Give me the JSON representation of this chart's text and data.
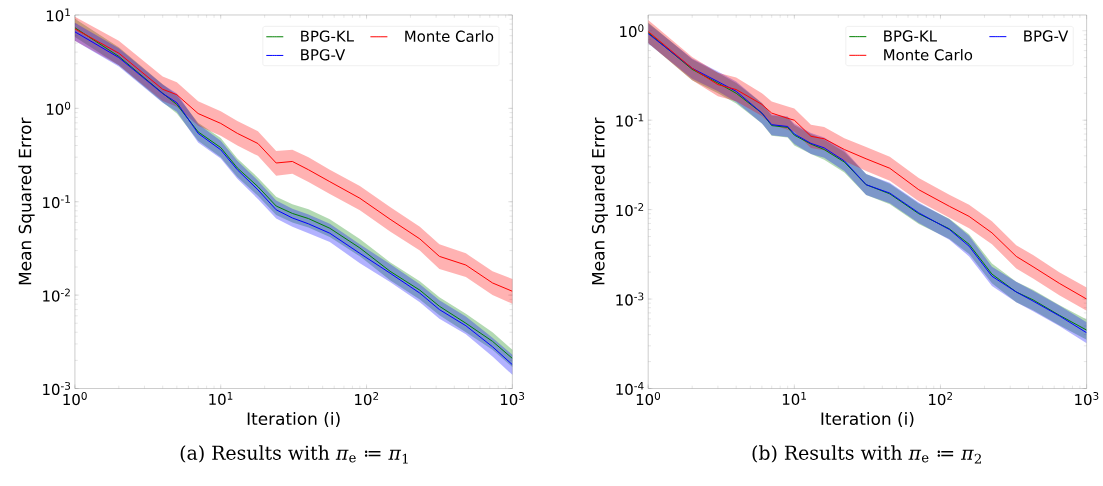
{
  "chart_data": [
    {
      "type": "line",
      "xlabel": "Iteration (i)",
      "ylabel": "Mean Squared Error",
      "log": "xy",
      "legend": "top right",
      "annotations": [
        "(a) Results with *π*$_{e}$ ≔ *π*$_{1}$"
      ],
      "xlim": [
        1,
        1000
      ],
      "ylim": [
        0.001,
        10
      ],
      "xticks": [
        {
          "value": 1,
          "label": "10$^{0}$"
        },
        {
          "value": 10,
          "label": "10$^{1}$"
        },
        {
          "value": 100,
          "label": "10$^{2}$"
        },
        {
          "value": 1000,
          "label": "10$^{3}$"
        }
      ],
      "yticks": [
        {
          "value": 0.001,
          "label": "10$^{-3}$"
        },
        {
          "value": 0.01,
          "label": "10$^{-2}$"
        },
        {
          "value": 0.1,
          "label": "10$^{-1}$"
        },
        {
          "value": 1,
          "label": "10$^{0}$"
        },
        {
          "value": 10,
          "label": "10$^{1}$"
        }
      ],
      "x": [
        1,
        2,
        4,
        5,
        7,
        10,
        13,
        18,
        24,
        31,
        40,
        56,
        90,
        145,
        232,
        316,
        480,
        731,
        1000
      ],
      "series": [
        {
          "name": "BPG-KL",
          "color": "#008000",
          "values": [
            7.3,
            3.6,
            1.45,
            1.1,
            0.56,
            0.38,
            0.23,
            0.145,
            0.09,
            0.075,
            0.066,
            0.052,
            0.032,
            0.018,
            0.0113,
            0.0076,
            0.005,
            0.0032,
            0.0021
          ],
          "upper": [
            9.1,
            4.5,
            1.81,
            1.38,
            0.7,
            0.48,
            0.29,
            0.181,
            0.113,
            0.094,
            0.083,
            0.065,
            0.04,
            0.0225,
            0.0141,
            0.0095,
            0.0063,
            0.004,
            0.0026
          ],
          "lower": [
            5.8,
            2.9,
            1.16,
            0.88,
            0.45,
            0.3,
            0.184,
            0.116,
            0.072,
            0.06,
            0.053,
            0.042,
            0.026,
            0.0144,
            0.009,
            0.0061,
            0.004,
            0.0026,
            0.0017
          ]
        },
        {
          "name": "Monte Carlo",
          "color": "#ff0000",
          "values": [
            7.1,
            3.9,
            1.6,
            1.4,
            0.88,
            0.69,
            0.54,
            0.42,
            0.26,
            0.27,
            0.22,
            0.164,
            0.109,
            0.065,
            0.04,
            0.026,
            0.021,
            0.0135,
            0.011
          ],
          "upper": [
            9.6,
            5.3,
            2.2,
            1.9,
            1.19,
            0.93,
            0.73,
            0.57,
            0.35,
            0.36,
            0.3,
            0.22,
            0.147,
            0.088,
            0.054,
            0.035,
            0.028,
            0.018,
            0.0149
          ],
          "lower": [
            5.3,
            2.9,
            1.2,
            1.04,
            0.65,
            0.51,
            0.4,
            0.31,
            0.19,
            0.2,
            0.163,
            0.121,
            0.081,
            0.048,
            0.03,
            0.019,
            0.0156,
            0.01,
            0.0081
          ]
        },
        {
          "name": "BPG-V",
          "color": "#0000ff",
          "values": [
            6.6,
            3.5,
            1.44,
            1.15,
            0.54,
            0.36,
            0.22,
            0.134,
            0.082,
            0.067,
            0.058,
            0.046,
            0.028,
            0.0172,
            0.0105,
            0.007,
            0.0047,
            0.0028,
            0.0018
          ],
          "upper": [
            8.25,
            4.4,
            1.8,
            1.44,
            0.68,
            0.45,
            0.275,
            0.168,
            0.103,
            0.084,
            0.073,
            0.058,
            0.035,
            0.0215,
            0.0131,
            0.0088,
            0.0059,
            0.0035,
            0.0023
          ],
          "lower": [
            5.28,
            2.8,
            1.15,
            0.92,
            0.43,
            0.29,
            0.176,
            0.107,
            0.066,
            0.054,
            0.046,
            0.037,
            0.022,
            0.0138,
            0.0084,
            0.0056,
            0.0038,
            0.0022,
            0.0014
          ]
        }
      ]
    },
    {
      "type": "line",
      "xlabel": "Iteration (i)",
      "ylabel": "Mean Squared Error",
      "log": "xy",
      "legend": "top right",
      "annotations": [
        "(b) Results with *π*$_{e}$ ≔ *π*$_{2}$"
      ],
      "xlim": [
        1,
        1000
      ],
      "ylim": [
        0.0001,
        1.5
      ],
      "xticks": [
        {
          "value": 1,
          "label": "10$^{0}$"
        },
        {
          "value": 10,
          "label": "10$^{1}$"
        },
        {
          "value": 100,
          "label": "10$^{2}$"
        },
        {
          "value": 1000,
          "label": "10$^{3}$"
        }
      ],
      "yticks": [
        {
          "value": 0.0001,
          "label": "10$^{-4}$"
        },
        {
          "value": 0.001,
          "label": "10$^{-3}$"
        },
        {
          "value": 0.01,
          "label": "10$^{-2}$"
        },
        {
          "value": 0.1,
          "label": "10$^{-1}$"
        },
        {
          "value": 1,
          "label": "10$^{0}$"
        }
      ],
      "x": [
        1,
        2,
        3,
        4,
        6,
        7,
        9,
        10,
        13,
        16,
        22,
        31,
        45,
        71,
        115,
        157,
        225,
        330,
        430,
        650,
        1000
      ],
      "series": [
        {
          "name": "BPG-KL",
          "color": "#008000",
          "values": [
            0.95,
            0.37,
            0.26,
            0.2,
            0.12,
            0.087,
            0.083,
            0.068,
            0.054,
            0.047,
            0.034,
            0.019,
            0.015,
            0.009,
            0.0061,
            0.0041,
            0.0019,
            0.0012,
            0.00098,
            0.00066,
            0.00045
          ],
          "upper": [
            1.24,
            0.48,
            0.34,
            0.26,
            0.156,
            0.113,
            0.108,
            0.088,
            0.07,
            0.061,
            0.044,
            0.025,
            0.0195,
            0.0117,
            0.0079,
            0.0053,
            0.0025,
            0.00156,
            0.00127,
            0.00086,
            0.00059
          ],
          "lower": [
            0.73,
            0.28,
            0.2,
            0.154,
            0.092,
            0.067,
            0.064,
            0.052,
            0.042,
            0.036,
            0.026,
            0.0146,
            0.0115,
            0.0069,
            0.0047,
            0.0032,
            0.0015,
            0.00092,
            0.00075,
            0.00051,
            0.00035
          ]
        },
        {
          "name": "BPG-V",
          "color": "#0000ff",
          "values": [
            0.93,
            0.38,
            0.27,
            0.21,
            0.12,
            0.089,
            0.085,
            0.07,
            0.055,
            0.049,
            0.035,
            0.019,
            0.0153,
            0.0092,
            0.006,
            0.0039,
            0.0018,
            0.0012,
            0.00095,
            0.00065,
            0.00042
          ],
          "upper": [
            1.21,
            0.49,
            0.35,
            0.27,
            0.156,
            0.116,
            0.11,
            0.091,
            0.072,
            0.064,
            0.046,
            0.025,
            0.02,
            0.012,
            0.0078,
            0.0051,
            0.0023,
            0.00156,
            0.00124,
            0.00085,
            0.00055
          ],
          "lower": [
            0.72,
            0.29,
            0.21,
            0.16,
            0.092,
            0.068,
            0.065,
            0.054,
            0.042,
            0.038,
            0.027,
            0.0146,
            0.0118,
            0.0071,
            0.0046,
            0.003,
            0.0014,
            0.00092,
            0.00073,
            0.0005,
            0.00032
          ]
        },
        {
          "name": "Monte Carlo",
          "color": "#ff0000",
          "values": [
            0.98,
            0.38,
            0.25,
            0.22,
            0.15,
            0.12,
            0.105,
            0.1,
            0.066,
            0.062,
            0.047,
            0.037,
            0.029,
            0.0167,
            0.0109,
            0.0084,
            0.0055,
            0.003,
            0.0023,
            0.0015,
            0.001
          ],
          "upper": [
            1.32,
            0.51,
            0.34,
            0.3,
            0.2,
            0.162,
            0.142,
            0.135,
            0.089,
            0.084,
            0.063,
            0.05,
            0.039,
            0.0225,
            0.0147,
            0.0113,
            0.0074,
            0.004,
            0.0031,
            0.002,
            0.00135
          ],
          "lower": [
            0.73,
            0.28,
            0.185,
            0.163,
            0.111,
            0.089,
            0.078,
            0.074,
            0.049,
            0.046,
            0.035,
            0.027,
            0.021,
            0.0124,
            0.0081,
            0.0062,
            0.0041,
            0.0022,
            0.0017,
            0.0011,
            0.00074
          ]
        }
      ]
    }
  ]
}
